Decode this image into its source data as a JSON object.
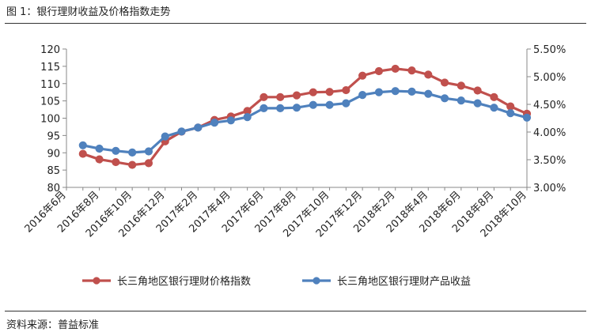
{
  "figure_title": "图 1：银行理财收益及价格指数走势",
  "source_note": "资料来源：普益标准",
  "colors": {
    "price_index": "#c0504d",
    "yield": "#4f81bd",
    "axis": "#888888"
  },
  "chart_data": {
    "type": "line",
    "categories": [
      "2016年6月",
      "2016年7月",
      "2016年8月",
      "2016年9月",
      "2016年10月",
      "2016年11月",
      "2016年12月",
      "2017年1月",
      "2017年2月",
      "2017年3月",
      "2017年4月",
      "2017年5月",
      "2017年6月",
      "2017年7月",
      "2017年8月",
      "2017年9月",
      "2017年10月",
      "2017年11月",
      "2017年12月",
      "2018年1月",
      "2018年2月",
      "2018年3月",
      "2018年4月",
      "2018年5月",
      "2018年6月",
      "2018年7月",
      "2018年8月",
      "2018年9月",
      "2018年10月"
    ],
    "xtick_labels": [
      "2016年6月",
      "2016年8月",
      "2016年10月",
      "2016年12月",
      "2017年2月",
      "2017年4月",
      "2017年6月",
      "2017年8月",
      "2017年10月",
      "2017年12月",
      "2018年2月",
      "2018年4月",
      "2018年6月",
      "2018年8月",
      "2018年10月"
    ],
    "y_left": {
      "ticks": [
        "120",
        "115",
        "110",
        "105",
        "100",
        "95",
        "90",
        "85",
        "80"
      ],
      "ylim": [
        80,
        120
      ]
    },
    "y_right": {
      "ticks": [
        "5.50%",
        "5.00%",
        "4.50%",
        "4.00%",
        "3.50%",
        "3.00%"
      ],
      "ylim": [
        3.0,
        5.5
      ]
    },
    "series": [
      {
        "name": "长三角地区银行理财价格指数",
        "axis": "left",
        "values": [
          null,
          89.7,
          88.1,
          87.3,
          86.5,
          87.0,
          93.3,
          96.1,
          97.3,
          99.5,
          100.5,
          102.1,
          106.1,
          106.1,
          106.6,
          107.5,
          107.6,
          108.1,
          112.3,
          113.6,
          114.3,
          113.8,
          112.6,
          110.3,
          109.4,
          108.0,
          106.1,
          103.4,
          101.3
        ]
      },
      {
        "name": "长三角地区银行理财产品收益",
        "axis": "right",
        "values": [
          null,
          3.76,
          3.7,
          3.66,
          3.63,
          3.65,
          3.92,
          4.01,
          4.08,
          4.17,
          4.21,
          4.27,
          4.43,
          4.43,
          4.44,
          4.49,
          4.49,
          4.52,
          4.67,
          4.72,
          4.74,
          4.73,
          4.69,
          4.61,
          4.57,
          4.52,
          4.44,
          4.34,
          4.26
        ]
      }
    ]
  }
}
